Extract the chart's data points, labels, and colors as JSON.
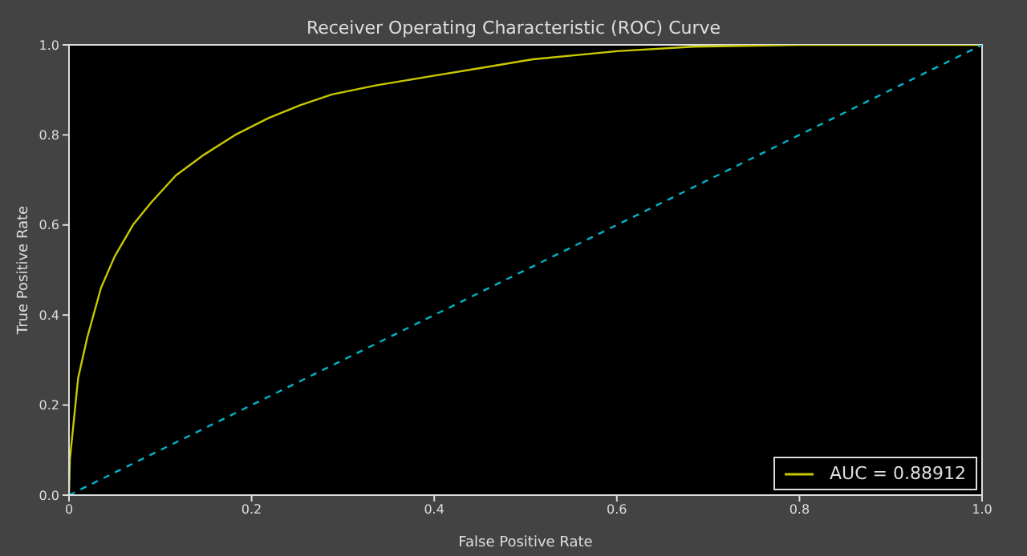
{
  "chart_data": {
    "type": "line",
    "title": "Receiver Operating Characteristic (ROC) Curve",
    "xlabel": "False Positive Rate",
    "ylabel": "True Positive Rate",
    "xlim": [
      0,
      1
    ],
    "ylim": [
      0,
      1
    ],
    "xticks": [
      0,
      {
        "value": 0.2,
        "label": "0.2"
      },
      {
        "value": 0.4,
        "label": "0.4"
      },
      {
        "value": 0.6,
        "label": "0.6"
      },
      {
        "value": 0.8,
        "label": "0.8"
      },
      {
        "value": 1,
        "label": "1.0"
      }
    ],
    "yticks": [
      {
        "value": 0,
        "label": "0.0"
      },
      {
        "value": 0.2,
        "label": "0.2"
      },
      {
        "value": 0.4,
        "label": "0.4"
      },
      {
        "value": 0.6,
        "label": "0.6"
      },
      {
        "value": 0.8,
        "label": "0.8"
      },
      {
        "value": 1,
        "label": "1.0"
      }
    ],
    "legend": "bottom right",
    "marker": "none",
    "series": [
      {
        "name": "AUC = 0.88912",
        "color": "#c8c800",
        "line_style": "solid",
        "x": [
          0,
          0.001,
          0.01,
          0.02,
          0.035,
          0.05,
          0.07,
          0.09,
          0.117,
          0.147,
          0.182,
          0.218,
          0.253,
          0.288,
          0.336,
          0.395,
          0.449,
          0.508,
          0.6,
          0.684,
          0.8,
          1
        ],
        "values": [
          0,
          0.08,
          0.26,
          0.35,
          0.46,
          0.53,
          0.6,
          0.65,
          0.71,
          0.755,
          0.8,
          0.837,
          0.866,
          0.89,
          0.91,
          0.93,
          0.948,
          0.968,
          0.986,
          0.996,
          1,
          1
        ]
      },
      {
        "color": "#00b4c8",
        "line_style": "dashed",
        "x": [
          0,
          1
        ],
        "values": [
          0,
          1
        ]
      }
    ]
  }
}
